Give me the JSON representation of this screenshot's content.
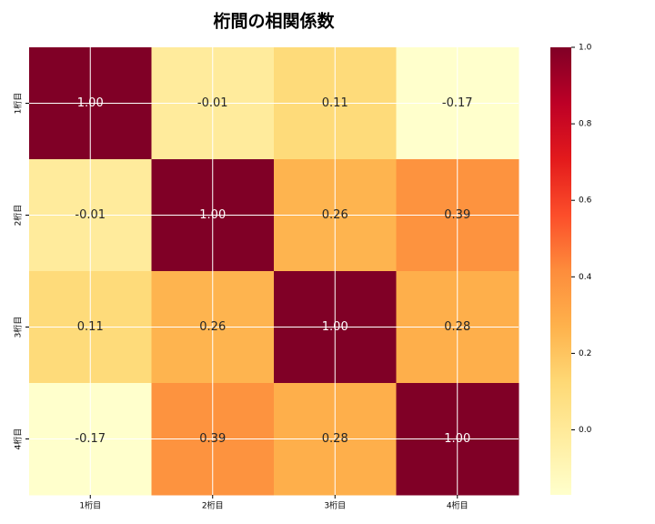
{
  "chart_data": {
    "type": "heatmap",
    "title": "桁間の相関係数",
    "x_categories": [
      "1桁目",
      "2桁目",
      "3桁目",
      "4桁目"
    ],
    "y_categories": [
      "1桁目",
      "2桁目",
      "3桁目",
      "4桁目"
    ],
    "values": [
      [
        1,
        -0.01,
        0.11,
        -0.17
      ],
      [
        -0.01,
        1,
        0.26,
        0.39
      ],
      [
        0.11,
        0.26,
        1,
        0.28
      ],
      [
        -0.17,
        0.39,
        0.28,
        1
      ]
    ],
    "value_labels": [
      [
        "1.00",
        "-0.01",
        "0.11",
        "-0.17"
      ],
      [
        "-0.01",
        "1.00",
        "0.26",
        "0.39"
      ],
      [
        "0.11",
        "0.26",
        "1.00",
        "0.28"
      ],
      [
        "-0.17",
        "0.39",
        "0.28",
        "1.00"
      ]
    ],
    "colormap": [
      "#ffffcc",
      "#ffeda0",
      "#fed976",
      "#feb24c",
      "#fd8d3c",
      "#fc4e2a",
      "#e31a1c",
      "#bd0026",
      "#800026"
    ],
    "zlim": [
      -0.17,
      1
    ],
    "zticks": [
      {
        "value": 0,
        "label": "0.0"
      },
      0.2,
      0.4,
      0.6,
      0.8,
      {
        "value": 1,
        "label": "1.0"
      }
    ],
    "grid": true
  }
}
